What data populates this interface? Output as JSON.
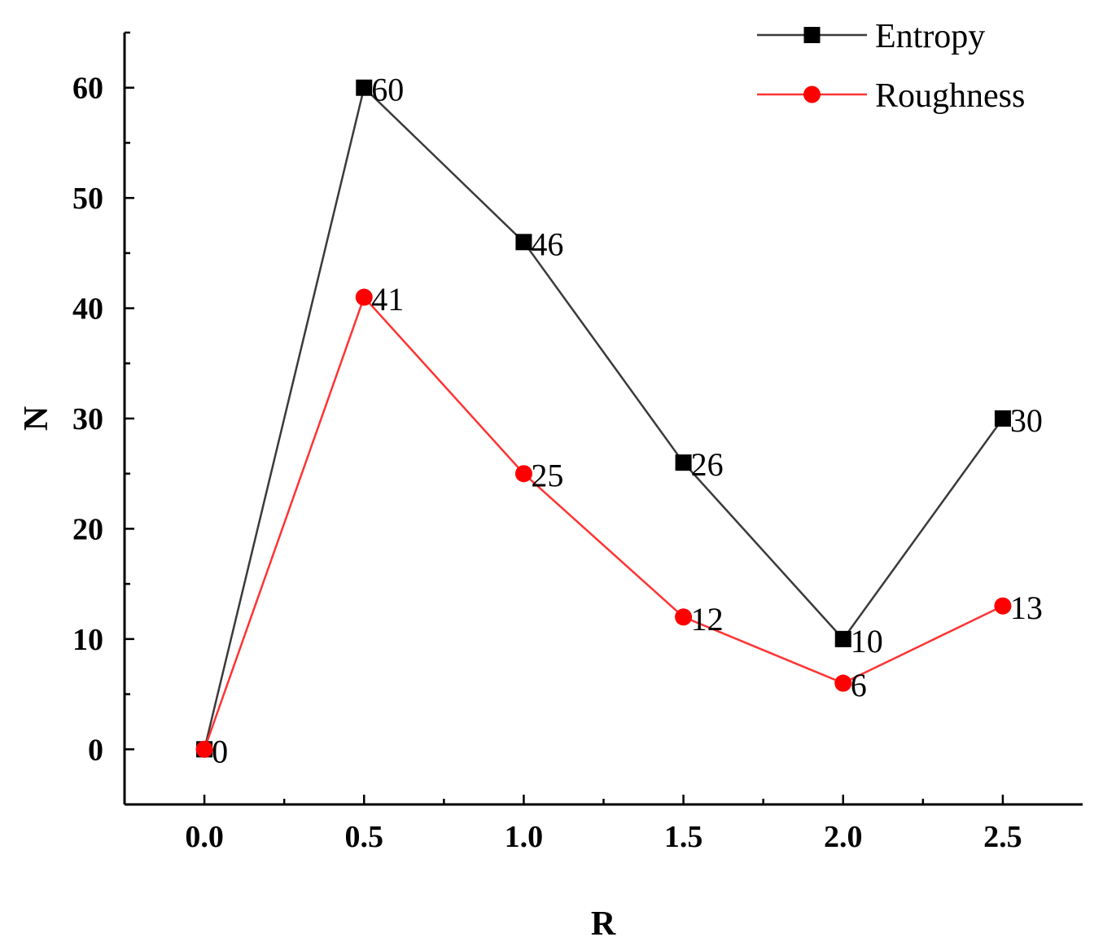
{
  "chart_data": {
    "type": "line",
    "title": "",
    "xlabel": "R",
    "ylabel": "N",
    "x": [
      0.0,
      0.5,
      1.0,
      1.5,
      2.0,
      2.5
    ],
    "xlim": [
      -0.25,
      2.75
    ],
    "ylim": [
      -5,
      65
    ],
    "x_ticks": [
      0.0,
      0.5,
      1.0,
      1.5,
      2.0,
      2.5
    ],
    "x_tick_labels": [
      "0.0",
      "0.5",
      "1.0",
      "1.5",
      "2.0",
      "2.5"
    ],
    "y_ticks": [
      0,
      10,
      20,
      30,
      40,
      50,
      60
    ],
    "y_tick_labels": [
      "0",
      "10",
      "20",
      "30",
      "40",
      "50",
      "60"
    ],
    "grid": false,
    "legend_position": "top-right",
    "series": [
      {
        "name": "Entropy",
        "marker": "square",
        "color": "#000000",
        "line_color": "#3a3a3a",
        "values": [
          0,
          60,
          46,
          26,
          10,
          30
        ],
        "labels": [
          "0",
          "60",
          "46",
          "26",
          "10",
          "30"
        ]
      },
      {
        "name": "Roughness",
        "marker": "circle",
        "color": "#ff0000",
        "line_color": "#ff3333",
        "values": [
          0,
          41,
          25,
          12,
          6,
          13
        ],
        "labels": [
          "0",
          "41",
          "25",
          "12",
          "6",
          "13"
        ]
      }
    ]
  }
}
